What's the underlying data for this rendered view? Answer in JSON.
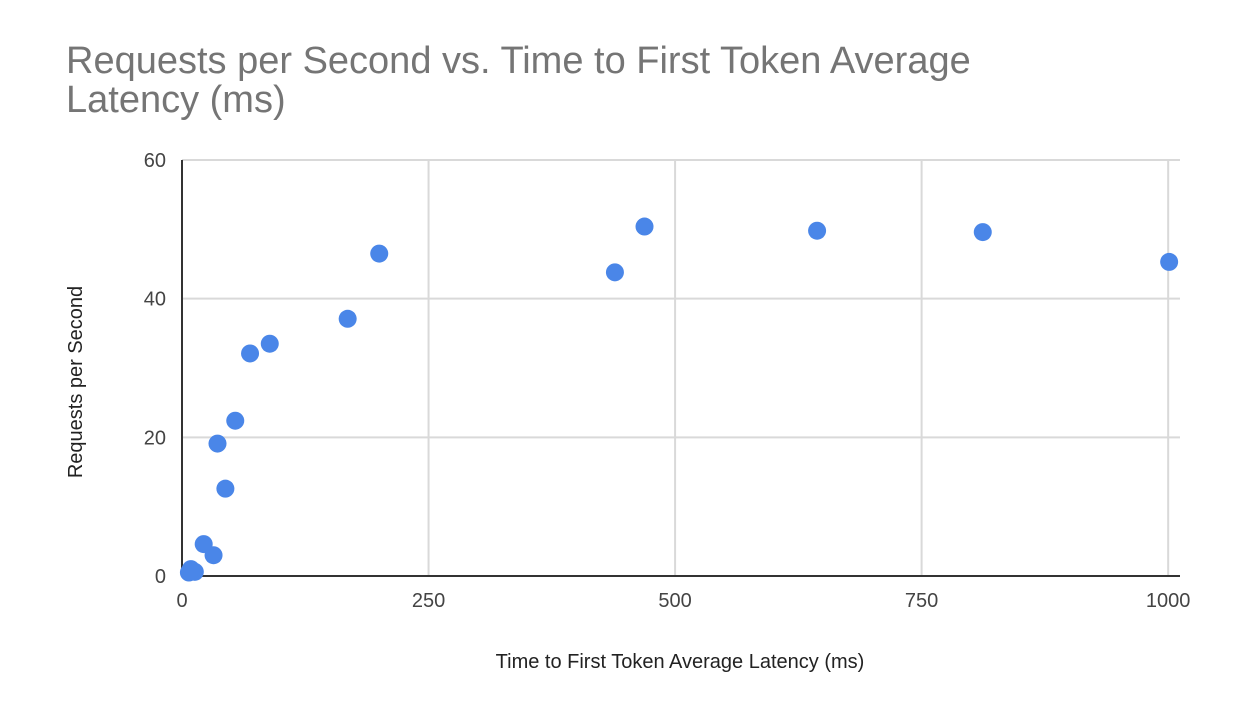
{
  "chart_data": {
    "type": "scatter",
    "title": "Requests per Second vs. Time to First Token Average Latency (ms)",
    "xlabel": "Time to First Token Average Latency (ms)",
    "ylabel": "Requests per Second",
    "xlim": [
      0,
      1012
    ],
    "ylim": [
      0,
      60
    ],
    "x_ticks": [
      "0",
      "250",
      "500",
      "750",
      "1000"
    ],
    "x_tick_values": [
      0,
      250,
      500,
      750,
      1000
    ],
    "y_ticks": [
      "0",
      "20",
      "40",
      "60"
    ],
    "y_tick_values": [
      0,
      20,
      40,
      60
    ],
    "grid": true,
    "color": "#4A86E8",
    "points": [
      {
        "x": 7,
        "y": 0.5
      },
      {
        "x": 9,
        "y": 1.0
      },
      {
        "x": 13,
        "y": 0.6
      },
      {
        "x": 22,
        "y": 4.6
      },
      {
        "x": 32,
        "y": 3.0
      },
      {
        "x": 36,
        "y": 19.1
      },
      {
        "x": 44,
        "y": 12.6
      },
      {
        "x": 54,
        "y": 22.4
      },
      {
        "x": 69,
        "y": 32.1
      },
      {
        "x": 89,
        "y": 33.5
      },
      {
        "x": 168,
        "y": 37.1
      },
      {
        "x": 200,
        "y": 46.5
      },
      {
        "x": 439,
        "y": 43.8
      },
      {
        "x": 469,
        "y": 50.4
      },
      {
        "x": 644,
        "y": 49.8
      },
      {
        "x": 812,
        "y": 49.6
      },
      {
        "x": 1001,
        "y": 45.3
      }
    ]
  }
}
